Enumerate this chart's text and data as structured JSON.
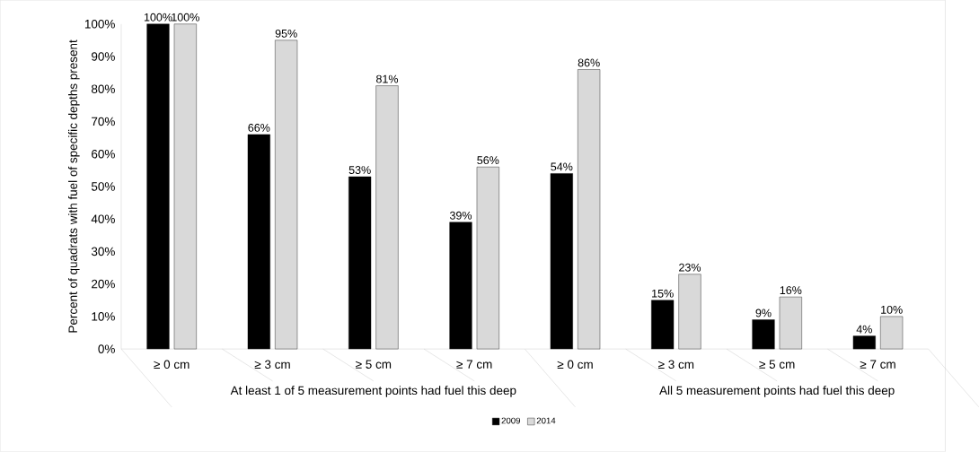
{
  "chart_data": {
    "type": "bar",
    "ylabel": "Percent of quadrats with fuel of specific depths present",
    "categories": [
      "≥ 0 cm",
      "≥ 3 cm",
      "≥ 5 cm",
      "≥ 7 cm",
      "≥ 0 cm",
      "≥ 3 cm",
      "≥ 5 cm",
      "≥ 7 cm"
    ],
    "series": [
      {
        "name": "2009",
        "color": "#000000",
        "values": [
          100,
          66,
          53,
          39,
          54,
          15,
          9,
          4
        ],
        "value_labels": [
          "100%",
          "66%",
          "53%",
          "39%",
          "54%",
          "15%",
          "9%",
          "4%"
        ]
      },
      {
        "name": "2014",
        "color": "#d9d9d9",
        "values": [
          100,
          95,
          81,
          56,
          86,
          23,
          16,
          10
        ],
        "value_labels": [
          "100%",
          "95%",
          "81%",
          "56%",
          "86%",
          "23%",
          "16%",
          "10%"
        ]
      }
    ],
    "ylim": [
      0,
      100
    ],
    "yticks": [
      {
        "value": 0,
        "label": "0%"
      },
      {
        "value": 10,
        "label": "10%"
      },
      {
        "value": 20,
        "label": "20%"
      },
      {
        "value": 30,
        "label": "30%"
      },
      {
        "value": 40,
        "label": "40%"
      },
      {
        "value": 50,
        "label": "50%"
      },
      {
        "value": 60,
        "label": "60%"
      },
      {
        "value": 70,
        "label": "70%"
      },
      {
        "value": 80,
        "label": "80%"
      },
      {
        "value": 90,
        "label": "90%"
      },
      {
        "value": 100,
        "label": "100%"
      }
    ],
    "annotations": [
      "At least 1 of 5 measurement points had fuel this deep",
      "All 5 measurement points had fuel this deep"
    ],
    "grid": false,
    "legend": "bottom"
  }
}
